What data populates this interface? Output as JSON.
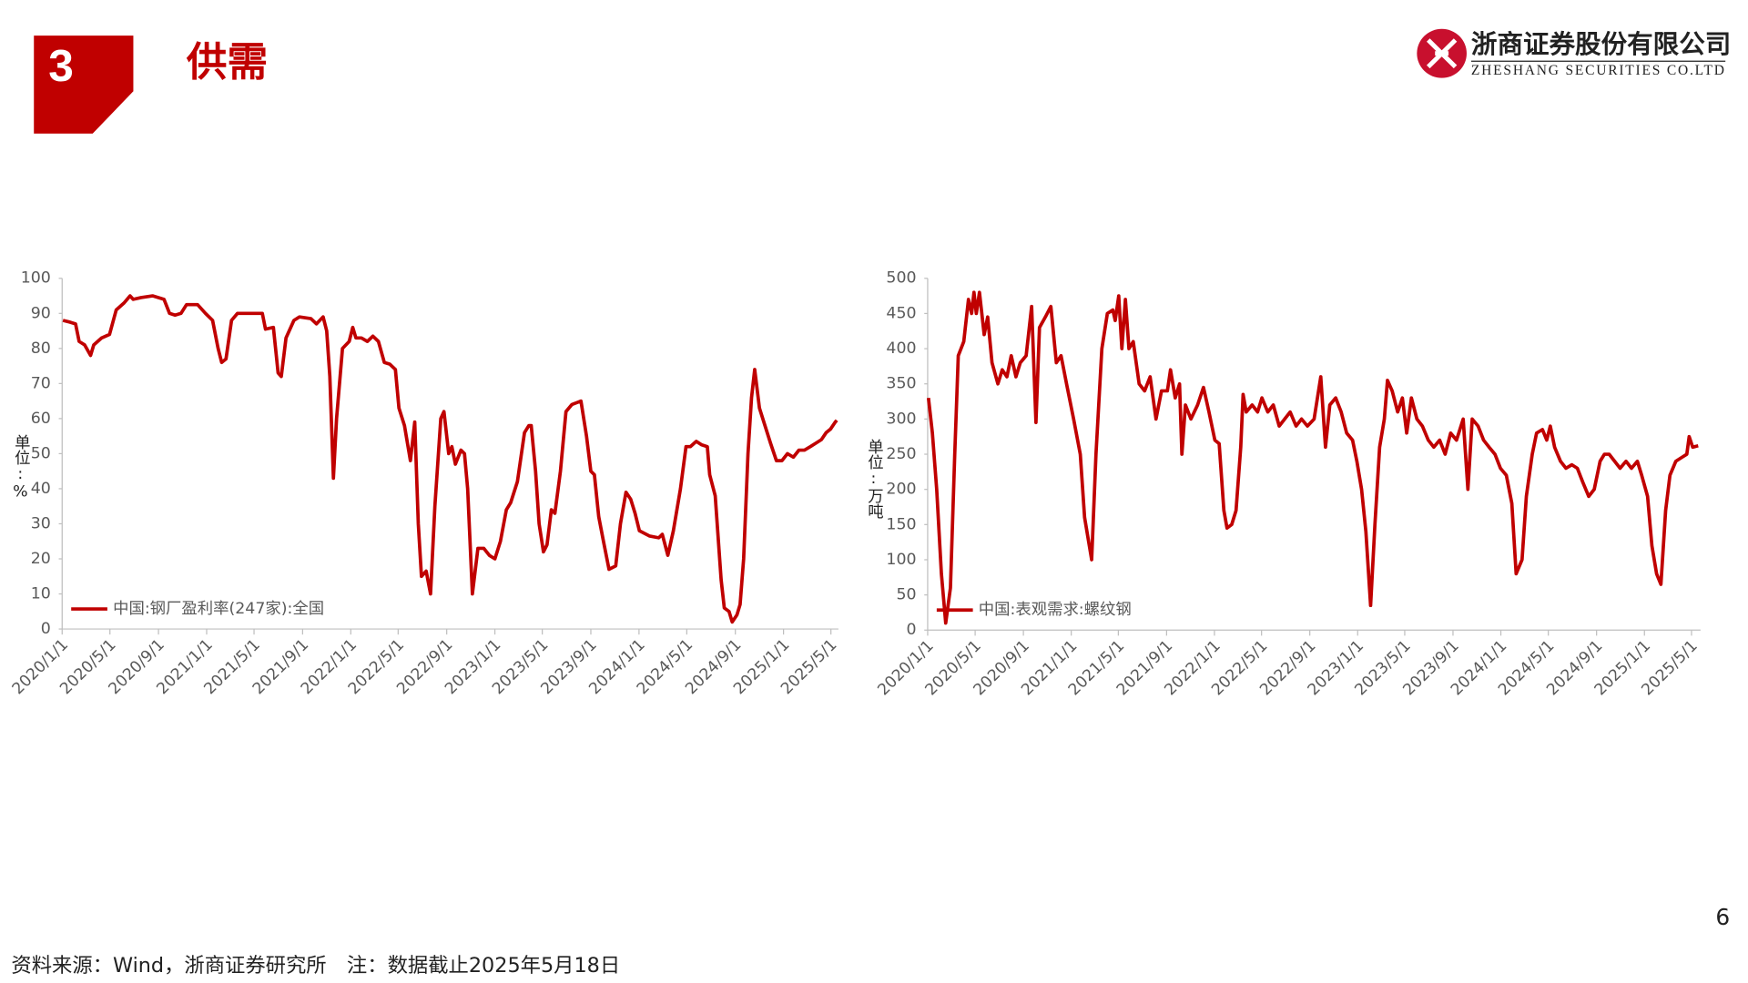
{
  "header": {
    "section_number": "3",
    "title": "供需",
    "logo": {
      "name_cn": "浙商证券股份有限公司",
      "name_en": "ZHESHANG SECURITIES CO.LTD"
    }
  },
  "chart_data": [
    {
      "type": "line",
      "y_label": "单位:%",
      "x": [
        "2020/1/3",
        "2020/1/21",
        "2020/2/4",
        "2020/2/13",
        "2020/2/27",
        "2020/3/13",
        "2020/3/21",
        "2020/4/10",
        "2020/4/30",
        "2020/5/17",
        "2020/6/6",
        "2020/6/21",
        "2020/6/29",
        "2020/7/19",
        "2020/8/17",
        "2020/9/15",
        "2020/9/29",
        "2020/10/13",
        "2020/10/28",
        "2020/11/11",
        "2020/12/9",
        "2020/12/29",
        "2021/1/16",
        "2021/1/30",
        "2021/2/8",
        "2021/2/19",
        "2021/3/5",
        "2021/3/20",
        "2021/4/17",
        "2021/5/22",
        "2021/5/30",
        "2021/6/19",
        "2021/7/1",
        "2021/7/9",
        "2021/7/21",
        "2021/8/10",
        "2021/8/24",
        "2021/9/22",
        "2021/10/6",
        "2021/10/23",
        "2021/11/1",
        "2021/11/9",
        "2021/11/18",
        "2021/11/26",
        "2021/12/11",
        "2021/12/28",
        "2022/1/6",
        "2022/1/14",
        "2022/1/28",
        "2022/2/12",
        "2022/2/26",
        "2022/3/12",
        "2022/3/27",
        "2022/4/10",
        "2022/4/24",
        "2022/5/3",
        "2022/5/17",
        "2022/6/1",
        "2022/6/12",
        "2022/6/21",
        "2022/6/29",
        "2022/7/11",
        "2022/7/22",
        "2022/8/2",
        "2022/8/17",
        "2022/8/25",
        "2022/9/6",
        "2022/9/14",
        "2022/9/23",
        "2022/10/7",
        "2022/10/16",
        "2022/10/24",
        "2022/11/5",
        "2022/11/19",
        "2022/12/4",
        "2022/12/18",
        "2023/1/1",
        "2023/1/15",
        "2023/1/30",
        "2023/2/10",
        "2023/2/27",
        "2023/3/17",
        "2023/3/28",
        "2023/4/3",
        "2023/4/14",
        "2023/4/23",
        "2023/5/4",
        "2023/5/13",
        "2023/5/24",
        "2023/6/2",
        "2023/6/16",
        "2023/6/30",
        "2023/7/15",
        "2023/8/7",
        "2023/8/21",
        "2023/9/1",
        "2023/9/10",
        "2023/9/21",
        "2023/10/3",
        "2023/10/17",
        "2023/11/3",
        "2023/11/15",
        "2023/11/29",
        "2023/12/11",
        "2023/12/22",
        "2024/1/2",
        "2024/1/28",
        "2024/2/20",
        "2024/2/29",
        "2024/3/14",
        "2024/3/28",
        "2024/4/15",
        "2024/4/29",
        "2024/5/10",
        "2024/5/25",
        "2024/6/8",
        "2024/6/22",
        "2024/6/28",
        "2024/7/12",
        "2024/7/27",
        "2024/8/4",
        "2024/8/16",
        "2024/8/24",
        "2024/9/5",
        "2024/9/13",
        "2024/9/22",
        "2024/10/3",
        "2024/10/12",
        "2024/10/20",
        "2024/11/1",
        "2024/11/15",
        "2024/11/29",
        "2024/12/14",
        "2024/12/28",
        "2025/1/11",
        "2025/1/26",
        "2025/2/9",
        "2025/2/23",
        "2025/3/10",
        "2025/3/24",
        "2025/4/7",
        "2025/4/19",
        "2025/4/30",
        "2025/5/12",
        "2025/5/16"
      ],
      "series": [
        {
          "name": "中国:钢厂盈利率(247家):全国",
          "color": "#c00000",
          "values": [
            88,
            87.5,
            87,
            82,
            81,
            78,
            81,
            83,
            84,
            91,
            93,
            95,
            94,
            94.5,
            95,
            94,
            90,
            89.5,
            90,
            92.5,
            92.5,
            90,
            88,
            80,
            76,
            77,
            88,
            90,
            90,
            90,
            85.5,
            86,
            73,
            72,
            83,
            88,
            89,
            88.5,
            87,
            89,
            85,
            72,
            43,
            60,
            80,
            82,
            86,
            83,
            83,
            82,
            83.5,
            82,
            76,
            75.5,
            74,
            63,
            58,
            48,
            59,
            30,
            15,
            16.5,
            10,
            35,
            60,
            62,
            50,
            52,
            47,
            51,
            50,
            40,
            10,
            23,
            23,
            21,
            20,
            25,
            34,
            36,
            42,
            56,
            58,
            58,
            45,
            30,
            22,
            24,
            34,
            33,
            45,
            62,
            64,
            65,
            55,
            45,
            44,
            32,
            25,
            17,
            18,
            30,
            39,
            37,
            33,
            28,
            26.5,
            26,
            27,
            21,
            28,
            40,
            52,
            52,
            53.5,
            52.5,
            52,
            44,
            38,
            14,
            6,
            5,
            2,
            4,
            7,
            20,
            50,
            66,
            74,
            63,
            58,
            53,
            48,
            48,
            50,
            49,
            51,
            51,
            52,
            53,
            54,
            56,
            57,
            59,
            59.5
          ]
        }
      ],
      "xlim": [
        "2020/1/1",
        "2025/5/20"
      ],
      "xticks": [
        "2020/1/1",
        "2020/5/1",
        "2020/9/1",
        "2021/1/1",
        "2021/5/1",
        "2021/9/1",
        "2022/1/1",
        "2022/5/1",
        "2022/9/1",
        "2023/1/1",
        "2023/5/1",
        "2023/9/1",
        "2024/1/1",
        "2024/5/1",
        "2024/9/1",
        "2025/1/1",
        "2025/5/1"
      ],
      "ylim": [
        0,
        100
      ],
      "yticks": [
        0,
        10,
        20,
        30,
        40,
        50,
        60,
        70,
        80,
        90,
        100
      ],
      "grid": false,
      "legend": "bottom-left"
    },
    {
      "type": "line",
      "y_label": "单位:万吨",
      "x": [
        "2020/1/3",
        "2020/1/13",
        "2020/1/24",
        "2020/2/5",
        "2020/2/16",
        "2020/2/28",
        "2020/3/10",
        "2020/3/19",
        "2020/4/2",
        "2020/4/14",
        "2020/4/22",
        "2020/4/28",
        "2020/5/4",
        "2020/5/12",
        "2020/5/24",
        "2020/6/2",
        "2020/6/13",
        "2020/6/28",
        "2020/7/9",
        "2020/7/21",
        "2020/8/1",
        "2020/8/13",
        "2020/8/24",
        "2020/9/8",
        "2020/9/22",
        "2020/10/3",
        "2020/10/12",
        "2020/10/27",
        "2020/11/10",
        "2020/11/24",
        "2020/12/6",
        "2020/12/20",
        "2021/1/7",
        "2021/1/24",
        "2021/2/4",
        "2021/2/22",
        "2021/3/5",
        "2021/3/20",
        "2021/4/3",
        "2021/4/17",
        "2021/4/23",
        "2021/5/2",
        "2021/5/10",
        "2021/5/19",
        "2021/5/28",
        "2021/6/8",
        "2021/6/23",
        "2021/7/7",
        "2021/7/21",
        "2021/8/5",
        "2021/8/19",
        "2021/9/3",
        "2021/9/11",
        "2021/9/23",
        "2021/10/4",
        "2021/10/10",
        "2021/10/19",
        "2021/11/2",
        "2021/11/19",
        "2021/12/4",
        "2021/12/18",
        "2022/1/2",
        "2022/1/13",
        "2022/1/25",
        "2022/2/2",
        "2022/2/14",
        "2022/2/25",
        "2022/3/9",
        "2022/3/15",
        "2022/3/23",
        "2022/4/7",
        "2022/4/21",
        "2022/5/2",
        "2022/5/17",
        "2022/5/31",
        "2022/6/15",
        "2022/6/29",
        "2022/7/13",
        "2022/7/28",
        "2022/8/11",
        "2022/8/26",
        "2022/9/12",
        "2022/9/29",
        "2022/10/11",
        "2022/10/22",
        "2022/11/6",
        "2022/11/20",
        "2022/12/4",
        "2022/12/19",
        "2022/12/30",
        "2023/1/11",
        "2023/1/22",
        "2023/2/3",
        "2023/2/14",
        "2023/2/26",
        "2023/3/10",
        "2023/3/18",
        "2023/3/30",
        "2023/4/13",
        "2023/4/25",
        "2023/5/6",
        "2023/5/18",
        "2023/6/1",
        "2023/6/15",
        "2023/6/30",
        "2023/7/14",
        "2023/7/29",
        "2023/8/12",
        "2023/8/26",
        "2023/9/10",
        "2023/9/27",
        "2023/10/9",
        "2023/10/20",
        "2023/11/4",
        "2023/11/18",
        "2023/12/2",
        "2023/12/17",
        "2023/12/31",
        "2024/1/15",
        "2024/1/29",
        "2024/2/9",
        "2024/2/24",
        "2024/3/6",
        "2024/3/21",
        "2024/4/1",
        "2024/4/16",
        "2024/4/27",
        "2024/5/6",
        "2024/5/17",
        "2024/6/1",
        "2024/6/15",
        "2024/6/30",
        "2024/7/14",
        "2024/7/28",
        "2024/8/12",
        "2024/8/26",
        "2024/9/10",
        "2024/9/21",
        "2024/10/3",
        "2024/10/17",
        "2024/10/31",
        "2024/11/15",
        "2024/11/29",
        "2024/12/14",
        "2024/12/25",
        "2025/1/9",
        "2025/1/20",
        "2025/2/1",
        "2025/2/12",
        "2025/2/24",
        "2025/3/7",
        "2025/3/22",
        "2025/4/5",
        "2025/4/19",
        "2025/4/25",
        "2025/5/4",
        "2025/5/18"
      ],
      "series": [
        {
          "name": "中国:表观需求:螺纹钢",
          "color": "#c00000",
          "values": [
            330,
            280,
            200,
            80,
            10,
            60,
            250,
            390,
            410,
            470,
            450,
            480,
            450,
            480,
            420,
            445,
            380,
            350,
            370,
            360,
            390,
            360,
            380,
            390,
            460,
            295,
            430,
            445,
            460,
            380,
            390,
            350,
            300,
            250,
            160,
            100,
            250,
            400,
            450,
            455,
            440,
            475,
            400,
            470,
            400,
            410,
            350,
            340,
            360,
            300,
            340,
            340,
            370,
            330,
            350,
            250,
            320,
            300,
            320,
            345,
            310,
            270,
            265,
            170,
            145,
            150,
            170,
            260,
            335,
            310,
            320,
            310,
            330,
            310,
            320,
            290,
            300,
            310,
            290,
            300,
            290,
            300,
            360,
            260,
            320,
            330,
            310,
            280,
            270,
            240,
            200,
            140,
            35,
            150,
            260,
            300,
            355,
            340,
            310,
            330,
            280,
            330,
            300,
            290,
            270,
            260,
            270,
            250,
            280,
            270,
            300,
            200,
            300,
            290,
            270,
            260,
            250,
            230,
            220,
            180,
            80,
            100,
            190,
            250,
            280,
            285,
            270,
            290,
            260,
            240,
            230,
            235,
            230,
            210,
            190,
            200,
            240,
            250,
            250,
            240,
            230,
            240,
            230,
            240,
            220,
            190,
            120,
            80,
            65,
            170,
            220,
            240,
            245,
            250,
            275,
            260,
            262
          ]
        }
      ],
      "xlim": [
        "2020/1/1",
        "2025/5/24"
      ],
      "xticks": [
        "2020/1/1",
        "2020/5/1",
        "2020/9/1",
        "2021/1/1",
        "2021/5/1",
        "2021/9/1",
        "2022/1/1",
        "2022/5/1",
        "2022/9/1",
        "2023/1/1",
        "2023/5/1",
        "2023/9/1",
        "2024/1/1",
        "2024/5/1",
        "2024/9/1",
        "2025/1/1",
        "2025/5/1"
      ],
      "ylim": [
        0,
        500
      ],
      "yticks": [
        0,
        50,
        100,
        150,
        200,
        250,
        300,
        350,
        400,
        450,
        500
      ],
      "grid": false,
      "legend": "bottom-left"
    }
  ],
  "footer": {
    "source": "资料来源：Wind，浙商证券研究所　注：数据截止2025年5月18日",
    "page_number": "6"
  }
}
